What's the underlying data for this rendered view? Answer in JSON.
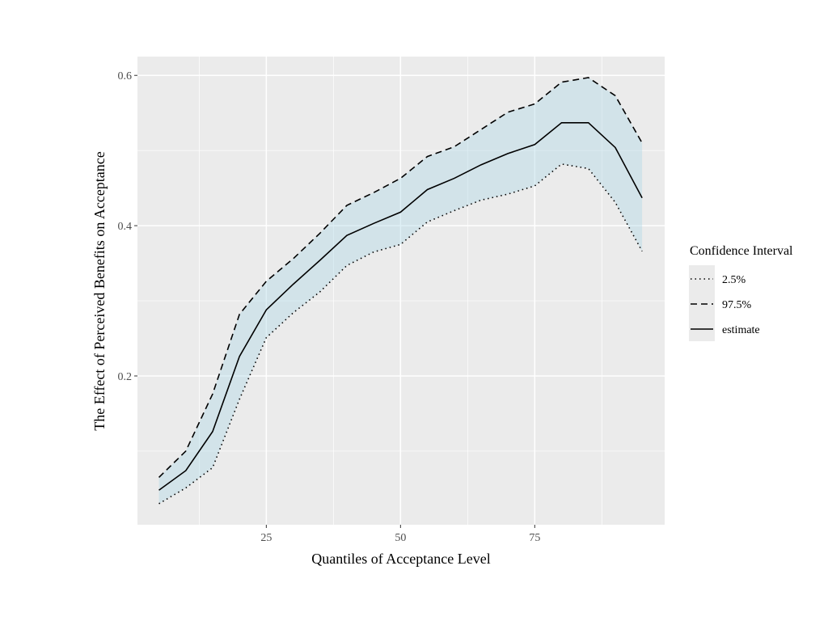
{
  "chart_data": {
    "type": "line",
    "title": "",
    "xlabel": "Quantiles of Acceptance Level",
    "ylabel": "The Effect of Perceived Benefits on Acceptance",
    "xlim": [
      1,
      99.2
    ],
    "ylim": [
      0.002,
      0.625
    ],
    "xticks": [
      25,
      50,
      75
    ],
    "xtick_labels": [
      "25",
      "50",
      "75"
    ],
    "yticks": [
      0.2,
      0.4,
      0.6
    ],
    "ytick_labels": [
      "0.2",
      "0.4",
      "0.6"
    ],
    "grid": true,
    "ribbon_color": "#add8e6",
    "x": [
      5,
      10,
      15,
      20,
      25,
      30,
      35,
      40,
      45,
      50,
      55,
      60,
      65,
      70,
      75,
      80,
      85,
      90,
      95
    ],
    "series": [
      {
        "name": "2.5%",
        "linetype": "dotted",
        "values": [
          0.03,
          0.051,
          0.078,
          0.169,
          0.251,
          0.284,
          0.312,
          0.347,
          0.365,
          0.375,
          0.405,
          0.42,
          0.434,
          0.442,
          0.453,
          0.482,
          0.476,
          0.431,
          0.366
        ]
      },
      {
        "name": "97.5%",
        "linetype": "dashed",
        "values": [
          0.065,
          0.1,
          0.176,
          0.282,
          0.326,
          0.356,
          0.39,
          0.427,
          0.444,
          0.463,
          0.492,
          0.505,
          0.528,
          0.551,
          0.562,
          0.591,
          0.597,
          0.573,
          0.51
        ]
      },
      {
        "name": "estimate",
        "linetype": "solid",
        "values": [
          0.048,
          0.074,
          0.126,
          0.226,
          0.288,
          0.322,
          0.354,
          0.387,
          0.403,
          0.418,
          0.448,
          0.463,
          0.481,
          0.496,
          0.508,
          0.537,
          0.537,
          0.504,
          0.437
        ]
      }
    ],
    "legend": {
      "title": "Confidence Interval",
      "placement": "right",
      "entries": [
        "2.5%",
        "97.5%",
        "estimate"
      ]
    }
  }
}
